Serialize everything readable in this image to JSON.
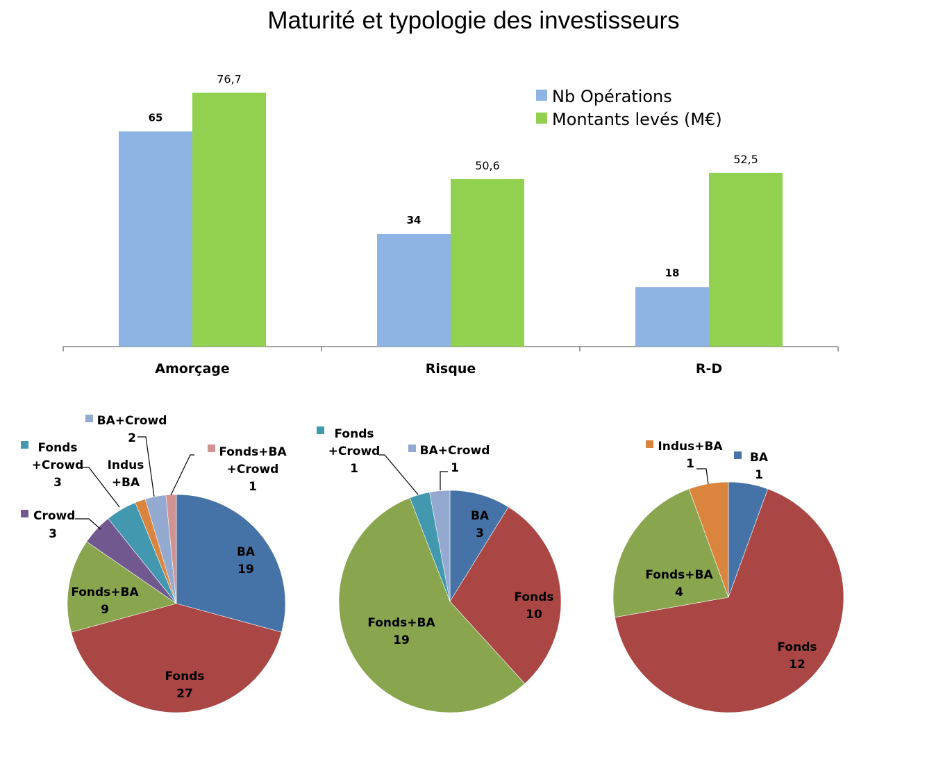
{
  "title": "Maturité et typologie des investisseurs",
  "bar_chart": {
    "legend": [
      {
        "name": "Nb Opérations",
        "color": "#8EB4E3"
      },
      {
        "name": "Montants levés (M€)",
        "color": "#92D050"
      }
    ]
  },
  "chart_data": [
    {
      "type": "bar",
      "categories": [
        "Amorçage",
        "Risque",
        "R-D"
      ],
      "series": [
        {
          "name": "Nb Opérations",
          "values": [
            65,
            34,
            18
          ],
          "labels": [
            "65",
            "34",
            "18"
          ],
          "color": "#8EB4E3"
        },
        {
          "name": "Montants levés (M€)",
          "values": [
            76.7,
            50.6,
            52.5
          ],
          "labels": [
            "76,7",
            "50,6",
            "52,5"
          ],
          "color": "#92D050"
        }
      ],
      "legend_position": "top-right",
      "grid": false
    },
    {
      "type": "pie",
      "slices": [
        {
          "label": "BA",
          "value": 19,
          "color": "#4572A7"
        },
        {
          "label": "Fonds",
          "value": 27,
          "color": "#AA4643"
        },
        {
          "label": "Fonds+BA",
          "value": 9,
          "color": "#89A54E"
        },
        {
          "label": "Crowd",
          "value": 3,
          "color": "#71588F"
        },
        {
          "label": "Fonds+Crowd",
          "value": 3,
          "color": "#4198AF"
        },
        {
          "label": "Indus+BA",
          "value": 1,
          "color": "#DB843D"
        },
        {
          "label": "BA+Crowd",
          "value": 2,
          "color": "#93A9CF"
        },
        {
          "label": "Fonds+BA+Crowd",
          "value": 1,
          "color": "#D19392"
        }
      ]
    },
    {
      "type": "pie",
      "slices": [
        {
          "label": "BA",
          "value": 3,
          "color": "#4572A7"
        },
        {
          "label": "Fonds",
          "value": 10,
          "color": "#AA4643"
        },
        {
          "label": "Fonds+BA",
          "value": 19,
          "color": "#89A54E"
        },
        {
          "label": "Fonds+Crowd",
          "value": 1,
          "color": "#4198AF"
        },
        {
          "label": "BA+Crowd",
          "value": 1,
          "color": "#93A9CF"
        }
      ]
    },
    {
      "type": "pie",
      "slices": [
        {
          "label": "BA",
          "value": 1,
          "color": "#4572A7"
        },
        {
          "label": "Fonds",
          "value": 12,
          "color": "#AA4643"
        },
        {
          "label": "Fonds+BA",
          "value": 4,
          "color": "#89A54E"
        },
        {
          "label": "Indus+BA",
          "value": 1,
          "color": "#DB843D"
        }
      ]
    }
  ]
}
